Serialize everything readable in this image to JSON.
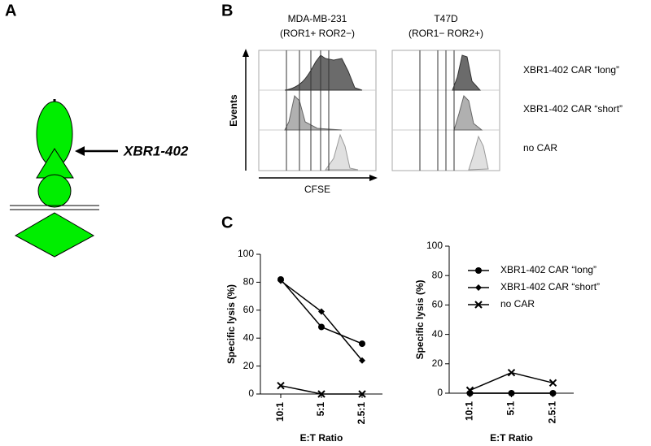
{
  "panel_labels": [
    "A",
    "B",
    "C"
  ],
  "diagram": {
    "label": "XBR1-402"
  },
  "flow": {
    "columns": [
      {
        "name": "MDA-MB-231",
        "subtitle": "(ROR1+ ROR2−)"
      },
      {
        "name": "T47D",
        "subtitle": "(ROR1− ROR2+)"
      }
    ],
    "rows": [
      "XBR1-402 CAR “long”",
      "XBR1-402 CAR “short”",
      "no CAR"
    ],
    "y_label": "Events",
    "x_label": "CFSE"
  },
  "chart_data": [
    {
      "type": "line",
      "categories": [
        "10:1",
        "5:1",
        "2.5:1"
      ],
      "ylabel": "Specific lysis (%)",
      "xlabel": "E:T Ratio",
      "ylim": [
        0,
        100
      ],
      "yticks": [
        0,
        20,
        40,
        60,
        80,
        100
      ],
      "legend": false,
      "series": [
        {
          "color": "#000000",
          "marker": "circle",
          "values": [
            82,
            48,
            36
          ]
        },
        {
          "color": "#000000",
          "marker": "diamond",
          "values": [
            81,
            59,
            24
          ]
        },
        {
          "color": "#000000",
          "marker": "x",
          "values": [
            6,
            0,
            0
          ]
        }
      ]
    },
    {
      "type": "line",
      "categories": [
        "10:1",
        "5:1",
        "2.5:1"
      ],
      "ylabel": "Specific lysis (%)",
      "xlabel": "E:T Ratio",
      "ylim": [
        0,
        100
      ],
      "yticks": [
        0,
        20,
        40,
        60,
        80,
        100
      ],
      "legend": true,
      "series": [
        {
          "name": "XBR1-402 CAR “long”",
          "color": "#000000",
          "marker": "circle",
          "values": [
            0,
            0,
            0
          ]
        },
        {
          "name": "XBR1-402 CAR “short”",
          "color": "#000000",
          "marker": "diamond",
          "values": [
            0,
            0,
            0
          ]
        },
        {
          "name": "no CAR",
          "color": "#000000",
          "marker": "x",
          "values": [
            2,
            14,
            7
          ]
        }
      ]
    }
  ]
}
